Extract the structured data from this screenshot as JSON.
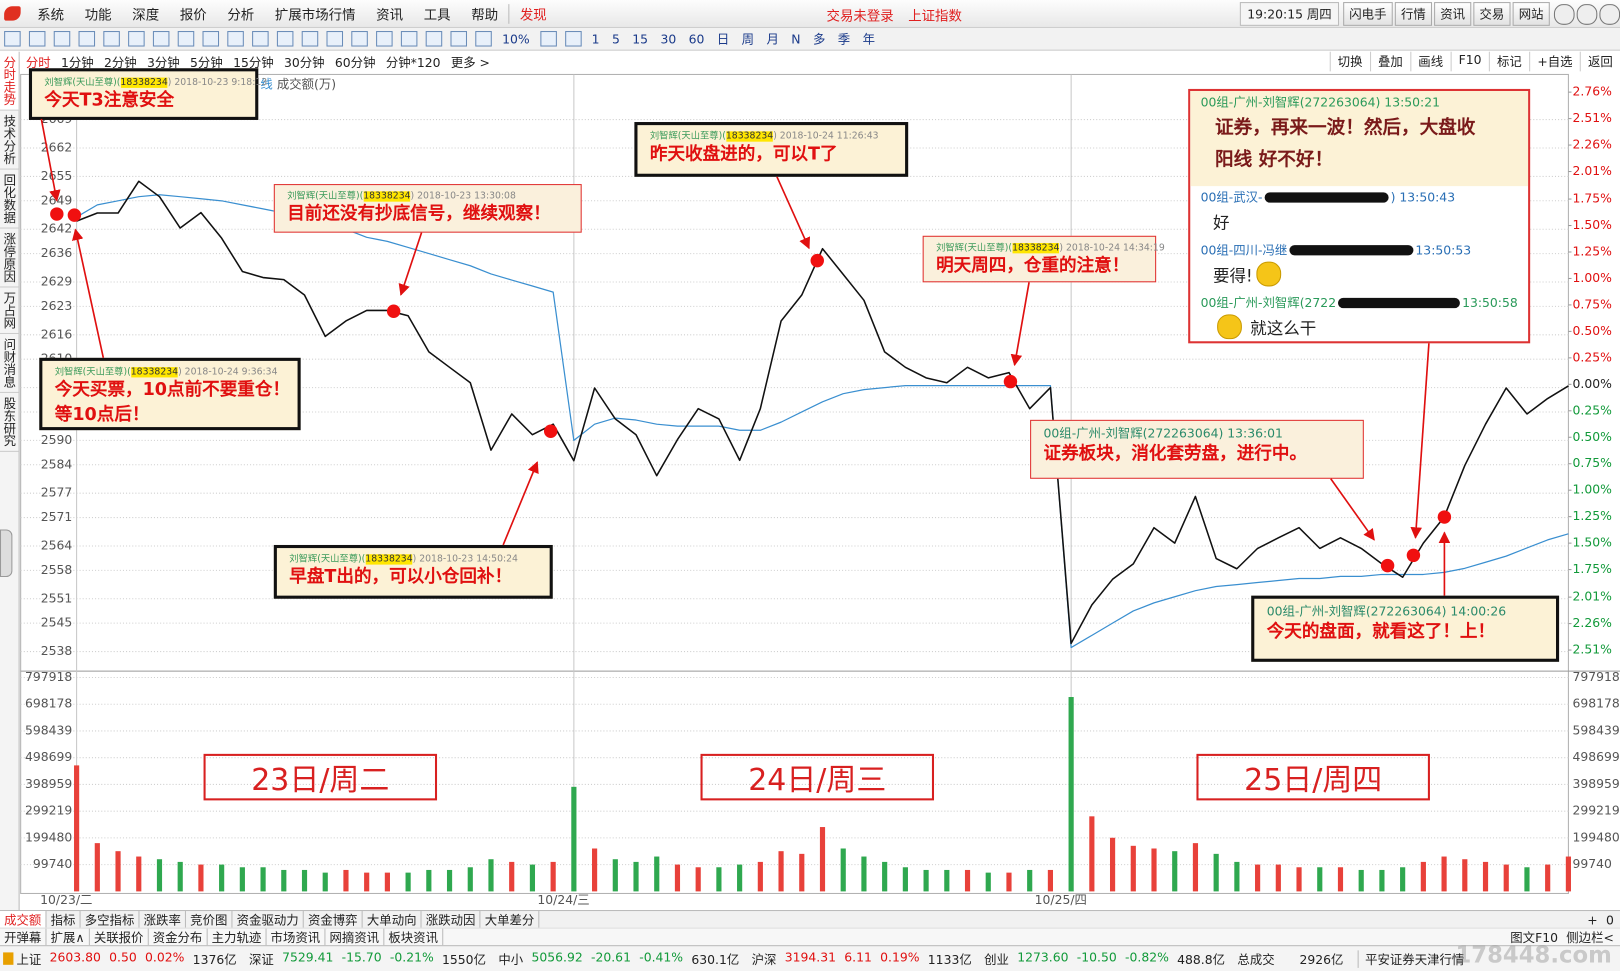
{
  "menu": {
    "items": [
      "系统",
      "功能",
      "深度",
      "报价",
      "分析",
      "扩展市场行情",
      "资讯",
      "工具",
      "帮助"
    ],
    "discover": "发现",
    "status": [
      "交易未登录",
      "上证指数"
    ],
    "clock": "19:20:15 周四",
    "buttons": [
      "闪电手",
      "行情",
      "资讯",
      "交易",
      "网站"
    ]
  },
  "toolbar": {
    "pct": "10%",
    "periods": [
      "1",
      "5",
      "15",
      "30",
      "60",
      "日",
      "周",
      "月",
      "N",
      "多",
      "季",
      "年"
    ]
  },
  "period_tabs": [
    "分时",
    "1分钟",
    "2分钟",
    "3分钟",
    "5分钟",
    "15分钟",
    "30分钟",
    "60分钟",
    "分钟*120",
    "更多 >"
  ],
  "right_tools": [
    "切换",
    "叠加",
    "画线",
    "F10",
    "标记",
    "+自选",
    "返回"
  ],
  "side_tabs": [
    "分时走势",
    "技术分析",
    "回化数据",
    "涨停原因",
    "万占网",
    "问财消息",
    "股东研究"
  ],
  "chart_data": [
    {
      "type": "line",
      "x": [
        0,
        10,
        20,
        30,
        40,
        50,
        60,
        70,
        80,
        90,
        100,
        110,
        120,
        130,
        140,
        150,
        160,
        170,
        180,
        190,
        200,
        210,
        220,
        230,
        240,
        250,
        260,
        270,
        280,
        290,
        300,
        310,
        320,
        330,
        340,
        350,
        360,
        370,
        380,
        390,
        400,
        410,
        420,
        430,
        440,
        450,
        460,
        470,
        480,
        490,
        500,
        510,
        520,
        530,
        540,
        550,
        560,
        570,
        580,
        590,
        600,
        610,
        620,
        630,
        640,
        650,
        660,
        670,
        680,
        690,
        700,
        710,
        720
      ],
      "xlim": [
        -27,
        720
      ],
      "series": [
        {
          "color": "#111111",
          "values": [
            2644,
            2646,
            2646,
            2653.8,
            2650,
            2642.3,
            2646.1,
            2639.8,
            2631.6,
            2630.1,
            2629.6,
            2625.8,
            2615.6,
            2619.4,
            2622,
            2622,
            2620.7,
            2611.8,
            2608,
            2604.2,
            2587.6,
            2596.5,
            2591.4,
            2594,
            2585,
            2602.9,
            2595.3,
            2591.4,
            2581.3,
            2590.2,
            2597.8,
            2595.3,
            2585.1,
            2597.8,
            2619.4,
            2625.8,
            2637.2,
            2630.9,
            2624.5,
            2611.8,
            2608,
            2605.4,
            2604.2,
            2608,
            2605.4,
            2606.7,
            2597.8,
            2603,
            2540,
            2549.5,
            2555.8,
            2559.6,
            2568.5,
            2564.7,
            2576.2,
            2560.9,
            2558.4,
            2563.4,
            2566,
            2568.5,
            2563.4,
            2566,
            2563.4,
            2559.6,
            2556.3,
            2564.7,
            2571.1,
            2583.8,
            2594,
            2602.9,
            2596.5,
            2600.3,
            2603.4
          ]
        },
        {
          "name": "线",
          "color": "#3a8fd0",
          "values": [
            2645,
            2648,
            2649,
            2650,
            2650.5,
            2650,
            2649.5,
            2649,
            2648,
            2647,
            2646,
            2645,
            2643,
            2642,
            2640,
            2639,
            2637.5,
            2636,
            2634.5,
            2633,
            2631,
            2629.5,
            2628,
            2626.5,
            2590,
            2594,
            2595.5,
            2595,
            2594,
            2593.5,
            2593.5,
            2593.5,
            2592.5,
            2592.5,
            2594.5,
            2597,
            2599.5,
            2601.5,
            2602.5,
            2603,
            2603.5,
            2603.5,
            2603.5,
            2603.5,
            2603.5,
            2603.5,
            2603.5,
            2603.5,
            2539,
            2542,
            2545,
            2548,
            2550,
            2551.5,
            2553,
            2554,
            2554.5,
            2555,
            2555.5,
            2556,
            2556,
            2556.5,
            2556.5,
            2557,
            2557,
            2557,
            2557.5,
            2558.5,
            2560,
            2561.5,
            2563.5,
            2565.5,
            2567
          ]
        }
      ],
      "ylim": [
        2534.2,
        2676.8
      ],
      "yticks": [
        2538,
        2545,
        2551,
        2558,
        2564,
        2571,
        2577,
        2584,
        2590,
        2597,
        2603,
        2610,
        2616,
        2623,
        2629,
        2636,
        2642,
        2649,
        2655,
        2662,
        2669
      ],
      "y2lim": [
        -2.67,
        2.8
      ],
      "y2ticks": [
        {
          "value": 2.76,
          "label": "2.76%"
        },
        {
          "value": 2.51,
          "label": "2.51%"
        },
        {
          "value": 2.26,
          "label": "2.26%"
        },
        {
          "value": 2.01,
          "label": "2.01%"
        },
        {
          "value": 1.75,
          "label": "1.75%"
        },
        {
          "value": 1.5,
          "label": "1.50%"
        },
        {
          "value": 1.25,
          "label": "1.25%"
        },
        {
          "value": 1,
          "label": "1.00%"
        },
        {
          "value": 0.75,
          "label": "0.75%"
        },
        {
          "value": 0.5,
          "label": "0.50%"
        },
        {
          "value": 0.25,
          "label": "0.25%"
        },
        {
          "value": 0,
          "label": "0.00%"
        },
        {
          "value": -0.25,
          "label": "0.25%"
        },
        {
          "value": -0.5,
          "label": "0.50%"
        },
        {
          "value": -0.75,
          "label": "0.75%"
        },
        {
          "value": -1,
          "label": "1.00%"
        },
        {
          "value": -1.25,
          "label": "1.25%"
        },
        {
          "value": -1.5,
          "label": "1.50%"
        },
        {
          "value": -1.75,
          "label": "1.75%"
        },
        {
          "value": -2.01,
          "label": "2.01%"
        },
        {
          "value": -2.26,
          "label": "2.26%"
        },
        {
          "value": -2.51,
          "label": "2.51%"
        }
      ],
      "grid": true
    },
    {
      "type": "bar",
      "name": "成交额(万)",
      "x": [
        0,
        10,
        20,
        30,
        40,
        50,
        60,
        70,
        80,
        90,
        100,
        110,
        120,
        130,
        140,
        150,
        160,
        170,
        180,
        190,
        200,
        210,
        220,
        230,
        240,
        250,
        260,
        270,
        280,
        290,
        300,
        310,
        320,
        330,
        340,
        350,
        360,
        370,
        380,
        390,
        400,
        410,
        420,
        430,
        440,
        450,
        460,
        470,
        480,
        490,
        500,
        510,
        520,
        530,
        540,
        550,
        560,
        570,
        580,
        590,
        600,
        610,
        620,
        630,
        640,
        650,
        660,
        670,
        680,
        690,
        700,
        710,
        720
      ],
      "xlim": [
        -27,
        720
      ],
      "values": [
        470000,
        180000,
        150000,
        130000,
        120000,
        110000,
        100000,
        100000,
        90000,
        90000,
        80000,
        80000,
        70000,
        80000,
        70000,
        70000,
        70000,
        80000,
        80000,
        90000,
        120000,
        110000,
        100000,
        110000,
        390000,
        160000,
        120000,
        110000,
        130000,
        100000,
        90000,
        90000,
        100000,
        110000,
        150000,
        140000,
        240000,
        160000,
        130000,
        110000,
        90000,
        80000,
        80000,
        80000,
        70000,
        70000,
        80000,
        80000,
        725000,
        280000,
        200000,
        170000,
        160000,
        150000,
        180000,
        140000,
        110000,
        100000,
        100000,
        90000,
        90000,
        90000,
        80000,
        80000,
        90000,
        110000,
        130000,
        120000,
        110000,
        100000,
        90000,
        100000,
        130000
      ],
      "colors": {
        "up": "#e8413a",
        "down": "#2fa84f"
      },
      "ylim": [
        0,
        810000
      ],
      "yticks": [
        99740,
        199480,
        299219,
        398959,
        498699,
        598439,
        698178,
        797918
      ],
      "xticks": [
        {
          "value": 0,
          "label": "10/23/二"
        },
        {
          "value": 240,
          "label": "10/24/三"
        },
        {
          "value": 480,
          "label": "10/25/四"
        }
      ],
      "grid": true
    }
  ],
  "annotations": [
    {
      "header": [
        "刘智辉(天山至尊)(",
        "18338234",
        ") 2018-10-23 9:18:13"
      ],
      "lines": [
        "今天T3注意安全"
      ]
    },
    {
      "header": [
        "刘智辉(天山至尊)(",
        "18338234",
        ") 2018-10-23 13:30:08"
      ],
      "lines": [
        "目前还没有抄底信号，继续观察！"
      ]
    },
    {
      "header": [
        "刘智辉(天山至尊)(",
        "18338234",
        ") 2018-10-24 9:36:34"
      ],
      "lines": [
        "今天买票，10点前不要重仓！",
        "等10点后！"
      ]
    },
    {
      "header": [
        "刘智辉(天山至尊)(",
        "18338234",
        ") 2018-10-23 14:50:24"
      ],
      "lines": [
        "早盘T出的，可以小仓回补！"
      ]
    },
    {
      "header": [
        "刘智辉(天山至尊)(",
        "18338234",
        ") 2018-10-24 11:26:43"
      ],
      "lines": [
        "昨天收盘进的，可以T了"
      ]
    },
    {
      "header": [
        "刘智辉(天山至尊)(",
        "18338234",
        ") 2018-10-24 14:34:19"
      ],
      "lines": [
        "明天周四，仓重的注意！"
      ]
    },
    {
      "header": [
        "00组-广州-刘智辉(272263064) 13:36:01"
      ],
      "lines": [
        "证券板块，消化套劳盘，进行中。"
      ]
    },
    {
      "header": [
        "00组-广州-刘智辉(272263064) 14:00:26"
      ],
      "lines": [
        "今天的盘面，就看这了！上！"
      ]
    }
  ],
  "day_labels": [
    "23日/周二",
    "24日/周三",
    "25日/周四"
  ],
  "chat": [
    {
      "head": [
        "00组-广州-刘智辉(272263064) 13:50:21"
      ],
      "text": [
        "证券，再来一波！然后，大盘收",
        "阳线 好不好！"
      ]
    },
    {
      "head": [
        "00组-武汉-",
        ") 13:50:43"
      ],
      "text": [
        "好"
      ]
    },
    {
      "head": [
        "00组-四川-冯继",
        "13:50:53"
      ],
      "text": [
        "要得!"
      ]
    },
    {
      "head": [
        "00组-广州-刘智辉(2722",
        "13:50:58"
      ],
      "text": [
        "就这么干"
      ]
    }
  ],
  "bottom_tabs": [
    "成交额",
    "指标",
    "多空指标",
    "涨跌率",
    "竞价图",
    "资金驱动力",
    "资金博弈",
    "大单动向",
    "涨跌动因",
    "大单差分"
  ],
  "bottom_tabs_right": [
    "+",
    "0"
  ],
  "bottom_tabs2": [
    "开弹幕",
    "扩展∧",
    "关联报价",
    "资金分布",
    "主力轨迹",
    "市场资讯",
    "网摘资讯",
    "板块资讯"
  ],
  "bottom_tabs2_right": [
    "图文F10",
    "侧边栏<"
  ],
  "ticker": {
    "quotes": [
      [
        "上证",
        "2603.80",
        "0.50",
        "0.02%",
        "1376亿"
      ],
      [
        "深证",
        "7529.41",
        "-15.70",
        "-0.21%",
        "1550亿"
      ],
      [
        "中小",
        "5056.92",
        "-20.61",
        "-0.41%",
        "630.1亿"
      ],
      [
        "沪深",
        "3194.31",
        "6.11",
        "0.19%",
        "1133亿"
      ],
      [
        "创业",
        "1273.60",
        "-10.50",
        "-0.82%",
        "488.8亿"
      ]
    ],
    "total_label": "总成交",
    "total": "2926亿",
    "broker": "平安证券天津行情"
  },
  "watermark": "178448.com"
}
